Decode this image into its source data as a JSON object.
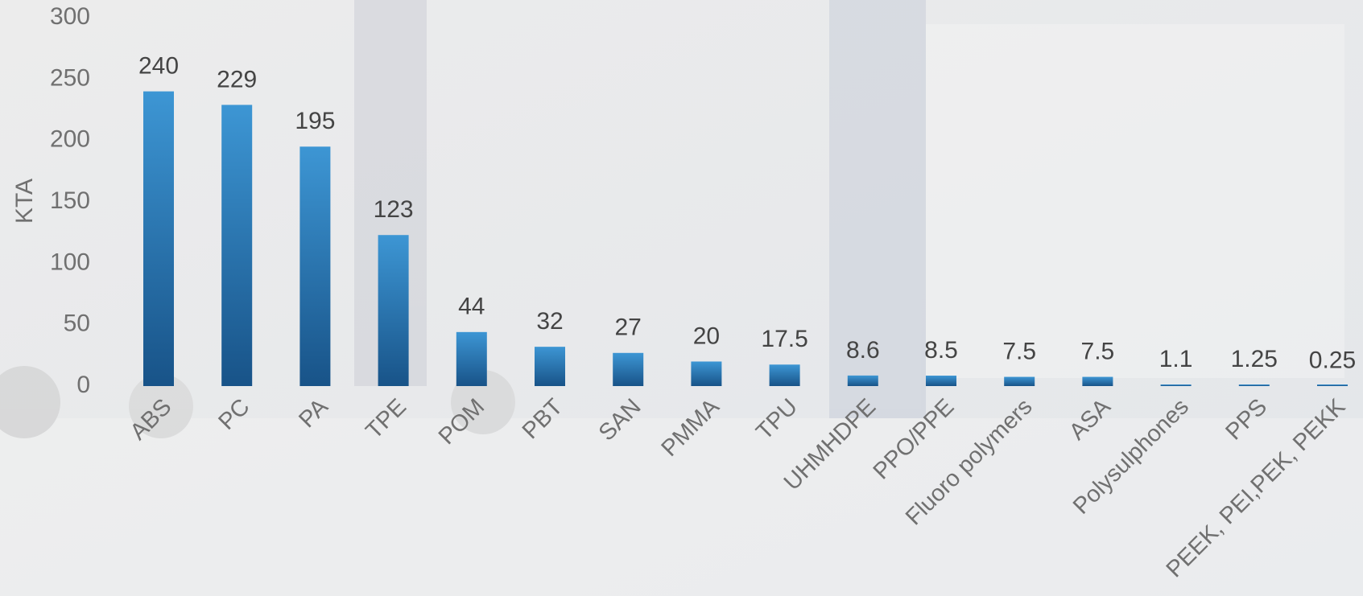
{
  "chart_data": {
    "type": "bar",
    "y_label": "KTA",
    "categories": [
      "ABS",
      "PC",
      "PA",
      "TPE",
      "POM",
      "PBT",
      "SAN",
      "PMMA",
      "TPU",
      "UHMHDPE",
      "PPO/PPE",
      "Fluoro polymers",
      "ASA",
      "Polysulphones",
      "PPS",
      "PEEK, PEI,PEK, PEKK"
    ],
    "values": [
      240,
      229,
      195,
      123,
      44,
      32,
      27,
      20,
      17.5,
      8.6,
      8.5,
      7.5,
      7.5,
      1.1,
      1.25,
      0.25
    ],
    "color": "#3d96d4",
    "ylim": [
      0,
      300
    ],
    "yticks": [
      0,
      50,
      100,
      150,
      200,
      250,
      300
    ],
    "grid": false
  }
}
